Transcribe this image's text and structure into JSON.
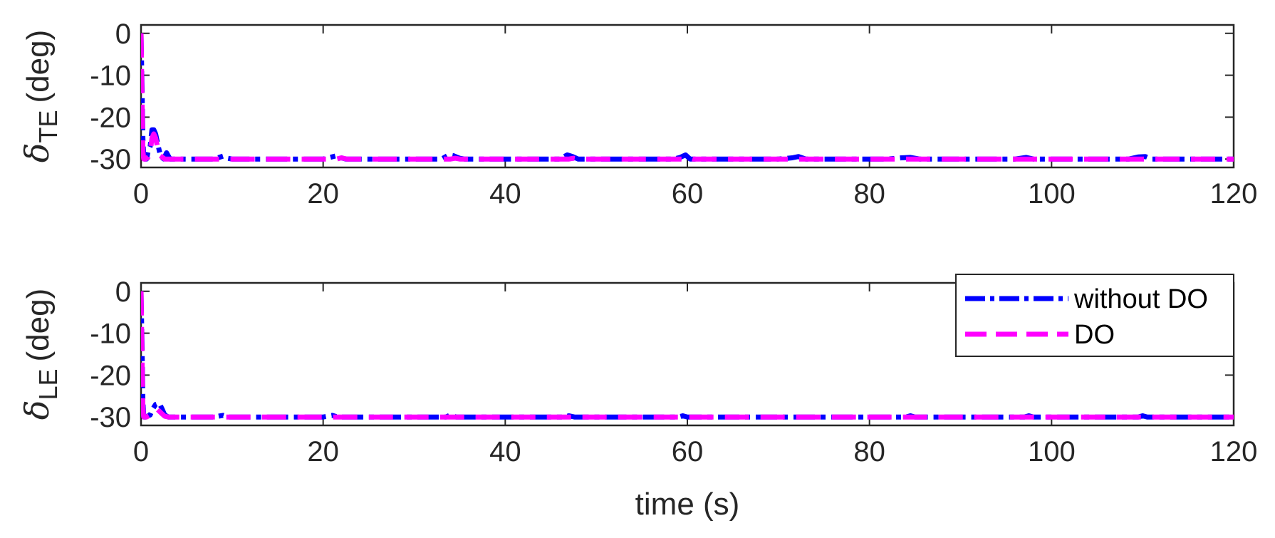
{
  "chart_data": [
    {
      "type": "line",
      "ylabel_symbol": "δ",
      "ylabel_subscript": "TE",
      "ylabel_unit": "(deg)",
      "xlabel": "",
      "xlim": [
        0,
        120
      ],
      "ylim": [
        -32,
        2
      ],
      "xticks": [
        0,
        20,
        40,
        60,
        80,
        100,
        120
      ],
      "yticks": [
        0,
        -10,
        -20,
        -30
      ],
      "series": [
        {
          "name": "without DO",
          "color": "#0000ff",
          "style": "dash-dot",
          "x": [
            0,
            0.1,
            0.2,
            0.3,
            0.4,
            0.6,
            0.8,
            1.0,
            1.2,
            1.4,
            1.6,
            1.8,
            2.0,
            2.2,
            2.5,
            2.8,
            3.2,
            4,
            8,
            9,
            9.5,
            10,
            20,
            21.5,
            22,
            22.5,
            33,
            33.8,
            34.3,
            35,
            35.5,
            46,
            46.8,
            47.4,
            48,
            58.5,
            59.2,
            59.8,
            60.3,
            70,
            71.5,
            72.2,
            73,
            82,
            83.5,
            84.5,
            85.5,
            96,
            97.2,
            98,
            108.5,
            109.5,
            110.3,
            111,
            120
          ],
          "y": [
            0,
            -12,
            -25,
            -29.5,
            -30,
            -30,
            -28,
            -27,
            -23,
            -23,
            -24,
            -26,
            -28,
            -29.5,
            -30,
            -28.5,
            -30,
            -30,
            -30,
            -29.3,
            -29.8,
            -30,
            -30,
            -29.2,
            -29.7,
            -30,
            -30,
            -29,
            -29.2,
            -29.8,
            -30,
            -30,
            -29,
            -29.4,
            -30,
            -30,
            -29.6,
            -29,
            -30,
            -30,
            -29.7,
            -29.4,
            -30,
            -30,
            -29.7,
            -29.6,
            -30,
            -30,
            -29.6,
            -30,
            -30,
            -29.5,
            -29.4,
            -30,
            -30
          ]
        },
        {
          "name": "DO",
          "color": "#ff00ff",
          "style": "dash",
          "x": [
            0,
            0.1,
            0.2,
            0.3,
            0.5,
            0.8,
            1.0,
            1.2,
            1.4,
            1.6,
            1.8,
            2.0,
            2.3,
            2.6,
            3.0,
            4,
            21.5,
            22,
            22.6,
            34,
            34.5,
            35,
            47,
            47.5,
            48,
            59.5,
            60,
            60.6,
            120
          ],
          "y": [
            0,
            -15,
            -28,
            -30,
            -30,
            -29.5,
            -28.5,
            -25,
            -24,
            -25,
            -27,
            -29,
            -29.5,
            -30,
            -30,
            -30,
            -30,
            -29.7,
            -30,
            -30,
            -29.8,
            -30,
            -30,
            -29.8,
            -30,
            -30,
            -29.6,
            -30,
            -30
          ]
        }
      ]
    },
    {
      "type": "line",
      "ylabel_symbol": "δ",
      "ylabel_subscript": "LE",
      "ylabel_unit": "(deg)",
      "xlabel": "time (s)",
      "xlim": [
        0,
        120
      ],
      "ylim": [
        -32,
        2
      ],
      "xticks": [
        0,
        20,
        40,
        60,
        80,
        100,
        120
      ],
      "yticks": [
        0,
        -10,
        -20,
        -30
      ],
      "legend_position": "top-right",
      "series": [
        {
          "name": "without DO",
          "color": "#0000ff",
          "style": "dash-dot",
          "x": [
            0,
            0.1,
            0.2,
            0.3,
            0.5,
            0.8,
            1.0,
            1.3,
            1.6,
            2.0,
            2.3,
            2.6,
            3.0,
            8,
            9,
            9.6,
            20,
            21,
            21.6,
            33.5,
            34,
            34.6,
            46.5,
            47,
            47.6,
            59,
            59.5,
            60,
            84,
            84.5,
            85,
            97,
            97.5,
            98,
            109.5,
            110,
            110.5,
            120
          ],
          "y": [
            0,
            -12,
            -26,
            -30,
            -30,
            -29.7,
            -29.5,
            -28,
            -27,
            -26.7,
            -28,
            -29.5,
            -30,
            -30,
            -29.6,
            -30,
            -30,
            -29.6,
            -30,
            -30,
            -29.5,
            -30,
            -30,
            -29.7,
            -30,
            -30,
            -29.7,
            -30,
            -30,
            -29.7,
            -30,
            -30,
            -29.7,
            -30,
            -30,
            -29.7,
            -30,
            -30
          ]
        },
        {
          "name": "DO",
          "color": "#ff00ff",
          "style": "dash",
          "x": [
            0,
            0.1,
            0.2,
            0.3,
            0.6,
            1.0,
            1.4,
            1.8,
            2.2,
            2.6,
            3.0,
            120
          ],
          "y": [
            0,
            -15,
            -28,
            -30,
            -30,
            -29.5,
            -28.5,
            -28.2,
            -29,
            -29.8,
            -30,
            -30
          ]
        }
      ]
    }
  ]
}
